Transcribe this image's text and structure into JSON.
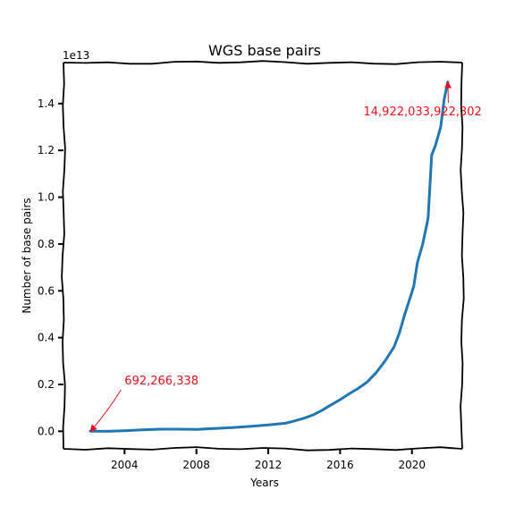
{
  "chart_data": {
    "type": "line",
    "title": "WGS base pairs",
    "xlabel": "Years",
    "ylabel": "Number of base pairs",
    "y_offset_label": "1e13",
    "xlim": [
      2000.6,
      2022.8
    ],
    "ylim": [
      -0.075,
      1.575
    ],
    "y_unit_multiplier": 10000000000000.0,
    "x_ticks": [
      2004,
      2008,
      2012,
      2016,
      2020
    ],
    "x_tick_labels": [
      "2004",
      "2008",
      "2012",
      "2016",
      "2020"
    ],
    "y_ticks": [
      0.0,
      0.2,
      0.4,
      0.6,
      0.8,
      1.0,
      1.2,
      1.4
    ],
    "y_tick_labels": [
      "0.0",
      "0.2",
      "0.4",
      "0.6",
      "0.8",
      "1.0",
      "1.2",
      "1.4"
    ],
    "grid": false,
    "line_color": "#1f77b4",
    "annotation_color": "#e8101c",
    "series": [
      {
        "x": [
          2002.1,
          2003.0,
          2004.0,
          2005.0,
          2006.0,
          2007.0,
          2008.0,
          2009.0,
          2010.0,
          2011.0,
          2012.0,
          2013.0,
          2013.5,
          2014.0,
          2014.5,
          2015.0,
          2015.5,
          2016.0,
          2016.5,
          2017.0,
          2017.5,
          2018.0,
          2018.5,
          2019.0,
          2019.3,
          2019.6,
          2019.9,
          2020.1,
          2020.3,
          2020.6,
          2020.9,
          2021.1,
          2021.3,
          2021.6,
          2021.8,
          2022.0
        ],
        "y": [
          6.92e-05,
          0.0,
          0.002,
          0.006,
          0.009,
          0.009,
          0.008,
          0.012,
          0.016,
          0.021,
          0.027,
          0.035,
          0.045,
          0.056,
          0.07,
          0.09,
          0.113,
          0.135,
          0.16,
          0.183,
          0.21,
          0.25,
          0.3,
          0.36,
          0.42,
          0.5,
          0.57,
          0.62,
          0.72,
          0.8,
          0.91,
          1.18,
          1.22,
          1.3,
          1.42,
          1.4922
        ]
      }
    ],
    "annotations": [
      {
        "text": "692,266,338",
        "point_x": 2002.1,
        "point_y": 6.92e-05,
        "label_x": 2004.0,
        "label_y": 0.2
      },
      {
        "text": "14,922,033,922,302",
        "point_x": 2022.0,
        "point_y": 1.4922,
        "label_x": 2017.3,
        "label_y": 1.35
      }
    ]
  }
}
